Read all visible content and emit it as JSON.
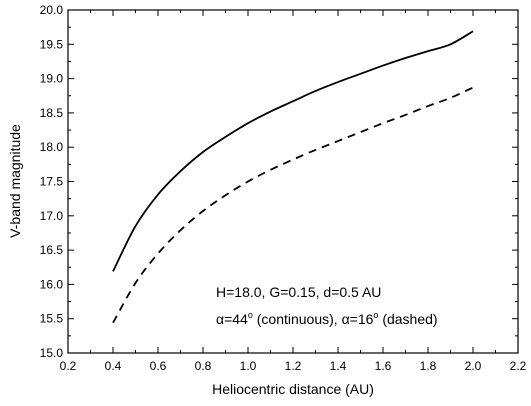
{
  "chart_data": {
    "type": "line",
    "xlabel": "Heliocentric distance (AU)",
    "ylabel": "V-band magnitude",
    "xlim": [
      0.2,
      2.2
    ],
    "ylim": [
      15.0,
      20.0
    ],
    "xticks": [
      "0.2",
      "0.4",
      "0.6",
      "0.8",
      "1.0",
      "1.2",
      "1.4",
      "1.6",
      "1.8",
      "2.0",
      "2.2"
    ],
    "yticks": [
      "15.0",
      "15.5",
      "16.0",
      "16.5",
      "17.0",
      "17.5",
      "18.0",
      "18.5",
      "19.0",
      "19.5",
      "20.0"
    ],
    "grid": false,
    "series": [
      {
        "style": "solid",
        "color": "#000000",
        "x": [
          0.4,
          0.5,
          0.6,
          0.7,
          0.8,
          0.9,
          1.0,
          1.1,
          1.2,
          1.3,
          1.4,
          1.5,
          1.6,
          1.7,
          1.8,
          1.9,
          2.0
        ],
        "y": [
          16.19,
          16.85,
          17.31,
          17.65,
          17.93,
          18.15,
          18.35,
          18.52,
          18.67,
          18.82,
          18.95,
          19.07,
          19.19,
          19.3,
          19.4,
          19.5,
          19.69
        ]
      },
      {
        "style": "dashed",
        "color": "#000000",
        "x": [
          0.4,
          0.5,
          0.6,
          0.7,
          0.8,
          0.9,
          1.0,
          1.1,
          1.2,
          1.3,
          1.4,
          1.5,
          1.6,
          1.7,
          1.8,
          1.9,
          2.0
        ],
        "y": [
          15.44,
          16.02,
          16.45,
          16.79,
          17.07,
          17.3,
          17.5,
          17.67,
          17.82,
          17.96,
          18.09,
          18.22,
          18.35,
          18.47,
          18.6,
          18.72,
          18.87
        ]
      }
    ],
    "annotations": [
      "H=18.0, G=0.15, d=0.5 AU"
    ],
    "annotation2": {
      "alpha": "α",
      "part1": "=44",
      "deg": "o",
      "part2": " (continuous), ",
      "part3": "=16",
      "part4": " (dashed)"
    }
  }
}
